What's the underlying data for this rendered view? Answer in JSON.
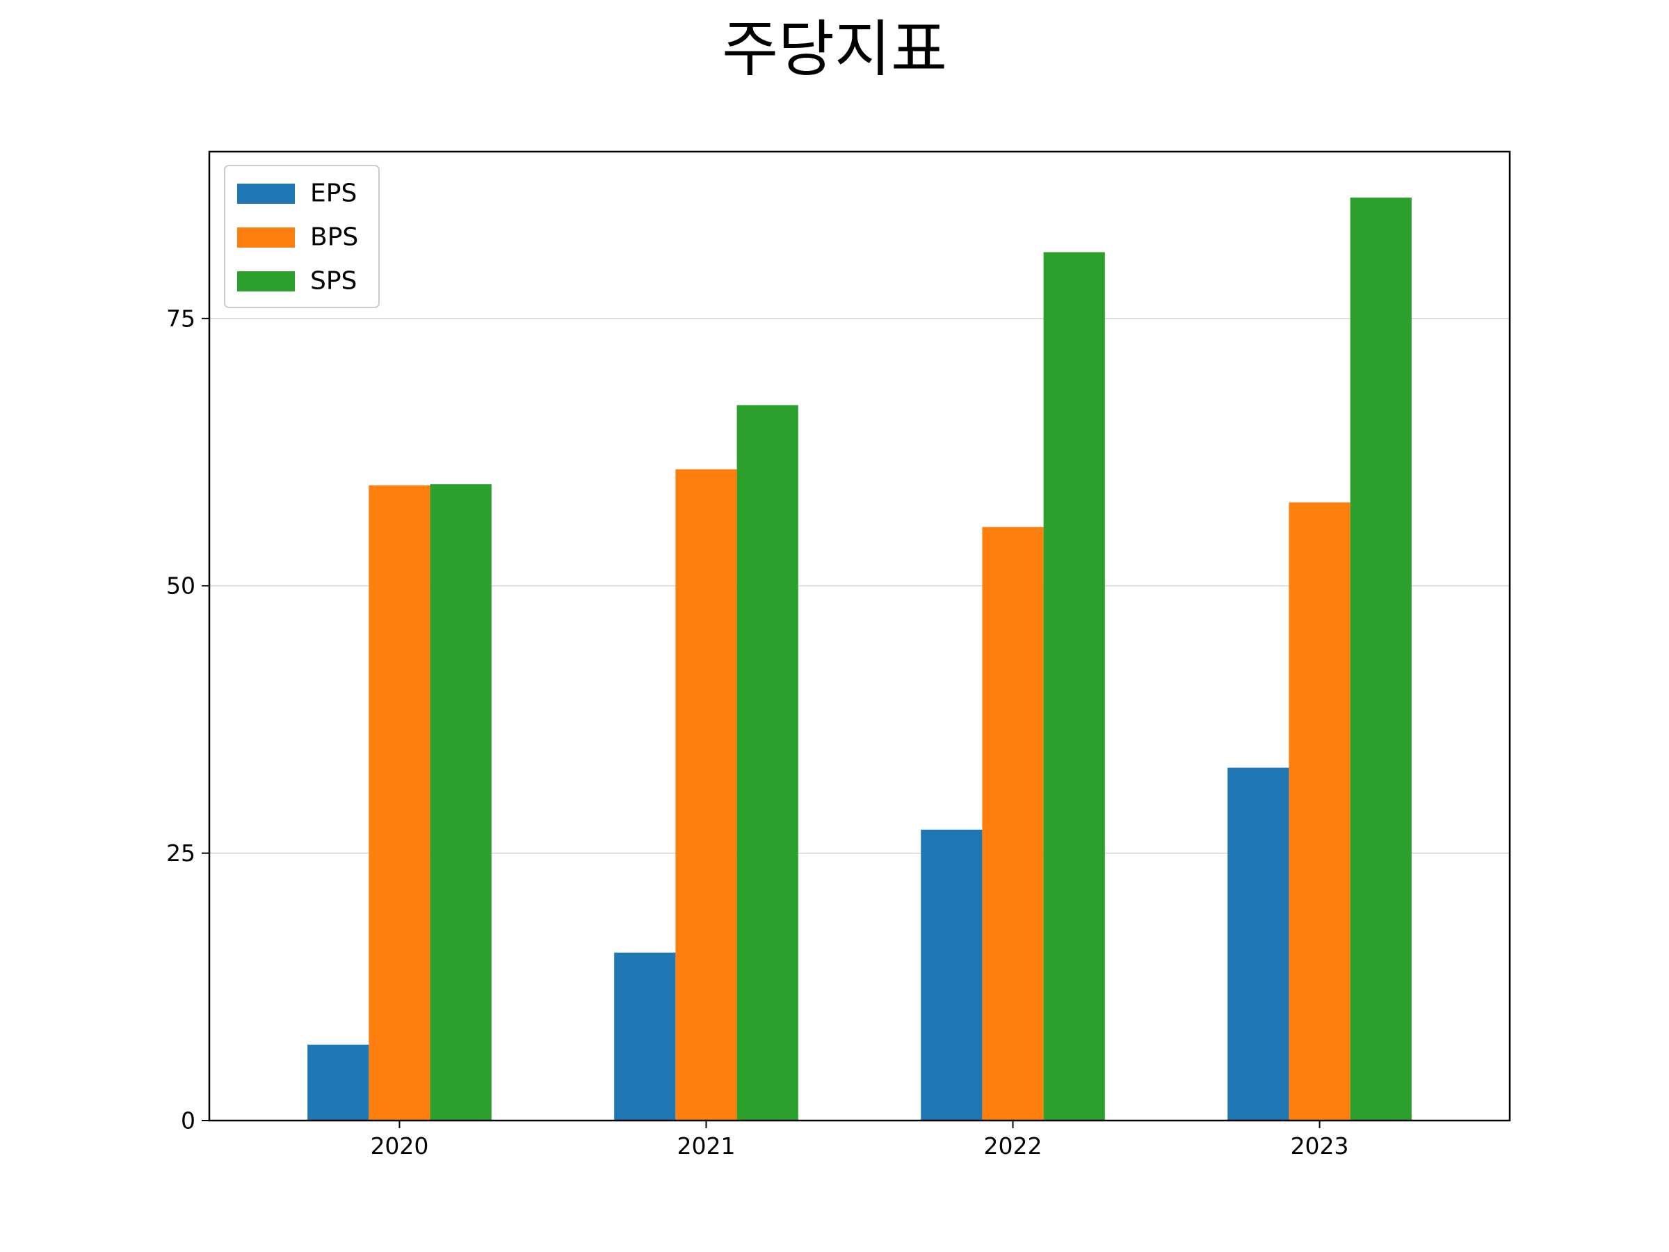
{
  "chart_data": {
    "type": "bar",
    "title": "주당지표",
    "xlabel": "",
    "ylabel": "",
    "categories": [
      "2020",
      "2021",
      "2022",
      "2023"
    ],
    "series": [
      {
        "name": "EPS",
        "color": "#1f77b4",
        "values": [
          7.1,
          15.7,
          27.2,
          33.0
        ]
      },
      {
        "name": "BPS",
        "color": "#ff7f0e",
        "values": [
          59.4,
          60.9,
          55.5,
          57.8
        ]
      },
      {
        "name": "SPS",
        "color": "#2ca02c",
        "values": [
          59.5,
          66.9,
          81.2,
          86.3
        ]
      }
    ],
    "yticks": [
      0,
      25,
      50,
      75
    ],
    "ylim": [
      0,
      90.6
    ],
    "grid": "y",
    "legend": "top-left"
  }
}
